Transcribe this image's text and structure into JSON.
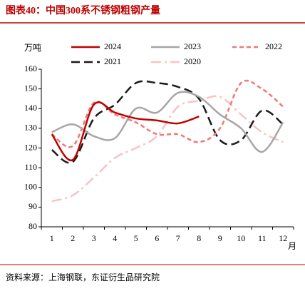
{
  "chart_data": {
    "type": "line",
    "title": "图表40：中国300系不锈钢粗钢产量",
    "y_label": "万吨",
    "x_label": "月",
    "source": "资料来源：上海钢联，东证衍生品研究院",
    "categories": [
      "1",
      "2",
      "3",
      "4",
      "5",
      "6",
      "7",
      "8",
      "9",
      "10",
      "11",
      "12"
    ],
    "ylim": [
      80,
      160
    ],
    "yticks": [
      80,
      90,
      100,
      110,
      120,
      130,
      140,
      150,
      160
    ],
    "grid": false,
    "legend": "top",
    "series": [
      {
        "name": "2024",
        "color": "#c00000",
        "dash": "none",
        "values": [
          127,
          114,
          142,
          138,
          135,
          134,
          132.5,
          136,
          null,
          null,
          null,
          null
        ]
      },
      {
        "name": "2023",
        "color": "#a6a6a6",
        "dash": "none",
        "values": [
          128,
          132,
          126,
          125,
          140,
          138,
          148,
          146,
          137,
          130,
          118,
          133
        ]
      },
      {
        "name": "2022",
        "color": "#f07878",
        "dash": "6,4",
        "values": [
          127,
          121,
          143,
          137,
          133,
          127,
          127,
          123,
          130,
          153,
          150,
          141
        ]
      },
      {
        "name": "2021",
        "color": "#1a1a1a",
        "dash": "12,6",
        "values": [
          119,
          113,
          135,
          142,
          153,
          153,
          151,
          145,
          124,
          124,
          139,
          132
        ]
      },
      {
        "name": "2020",
        "color": "#f6c4c4",
        "dash": "14,5,3,5",
        "values": [
          93,
          96,
          105,
          115,
          120,
          126,
          141,
          144,
          146,
          137,
          128,
          123
        ]
      }
    ]
  }
}
